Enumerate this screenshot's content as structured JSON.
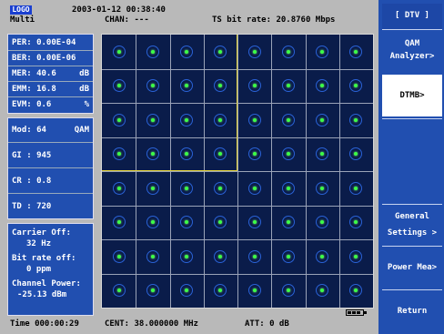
{
  "header": {
    "logo": "LOGO",
    "mode": "Multi",
    "datetime": "2003-01-12 00:38:40",
    "chan": "CHAN: ---",
    "ts_rate": "TS bit rate:  20.8760 Mbps"
  },
  "measurements": [
    {
      "label": "PER: 0.00E-04",
      "unit": ""
    },
    {
      "label": "BER: 0.00E-06",
      "unit": ""
    },
    {
      "label": "MER: 40.6",
      "unit": "dB"
    },
    {
      "label": "EMM: 16.8",
      "unit": "dB"
    },
    {
      "label": "EVM: 0.6",
      "unit": "%"
    }
  ],
  "params": {
    "mod": "Mod: 64",
    "mod_unit": "QAM",
    "gi": "GI : 945",
    "cr": "CR : 0.8",
    "td": "TD : 720"
  },
  "offsets": {
    "carrier_label": "Carrier Off:",
    "carrier_value": "32 Hz",
    "bitrate_label": "Bit rate off:",
    "bitrate_value": "0 ppm",
    "power_label": "Channel Power:",
    "power_value": "-25.13 dBm"
  },
  "footer": {
    "time": "Time 000:00:29",
    "cent": "CENT: 38.000000 MHz",
    "att": "ATT: 0 dB"
  },
  "softkeys": {
    "title": "[ DTV ]",
    "qam_line1": "QAM",
    "qam_line2": "Analyzer>",
    "dtmb": "DTMB>",
    "general_line1": "General",
    "general_line2": "Settings >",
    "power": "Power Mea>",
    "return": "Return"
  },
  "constellation": {
    "rows": 8,
    "cols": 8
  },
  "colors": {
    "panel_bg": "#214fb0",
    "grid_bg": "#0a1c4a",
    "point": "#3cff46",
    "quadrant_line": "#e2d23a"
  }
}
